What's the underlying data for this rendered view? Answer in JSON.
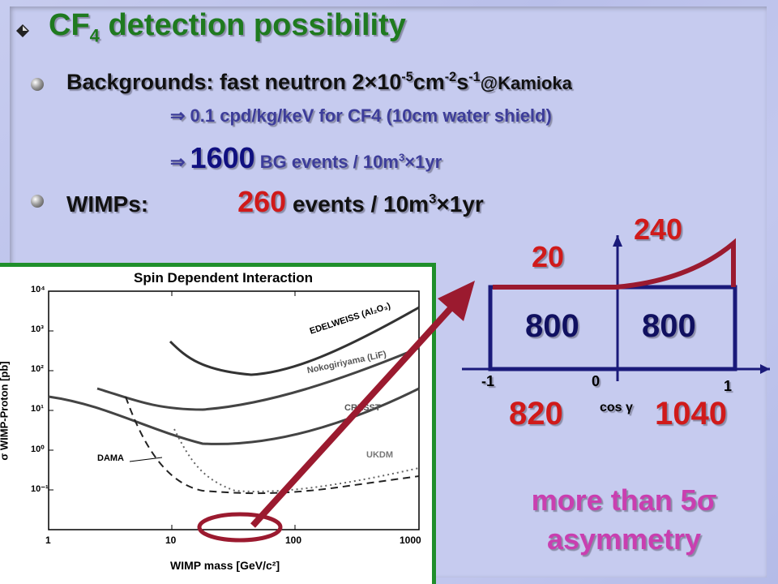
{
  "slide": {
    "title_main": "CF",
    "title_sub": "4",
    "title_rest": " detection possibility",
    "bg_line": {
      "prefix": "Backgrounds: fast neutron 2×10",
      "exp1": "-5",
      "mid1": "cm",
      "exp2": "-2",
      "mid2": "s",
      "exp3": "-1",
      "suffix": "@Kamioka"
    },
    "bg_rate": "⇒  0.1 cpd/kg/keV for CF4 (10cm water shield)",
    "bg_events": {
      "arrow": "⇒ ",
      "number": "1600",
      "text": " BG events / 10m",
      "exp": "3",
      "tail": "×1yr"
    },
    "wimps": {
      "label": "WIMPs:",
      "number": "260",
      "text": " events / 10m",
      "exp": "3",
      "tail": "×1yr"
    },
    "conclusion_line1": "more than 5σ",
    "conclusion_line2": "asymmetry"
  },
  "asym_diagram": {
    "signal_left": "20",
    "signal_right": "240",
    "bg_left": "800",
    "bg_right": "800",
    "tick_minus1": "-1",
    "tick_0": "0",
    "tick_1": "1",
    "axis_label": "cos γ",
    "total_left": "820",
    "total_right": "1040"
  },
  "limit_plot": {
    "title": "Spin Dependent Interaction",
    "xlabel": "WIMP mass [GeV/c²]",
    "ylabel": "σ WIMP-Proton [pb]",
    "x_ticks": [
      "1",
      "10",
      "100",
      "1000"
    ],
    "y_ticks": [
      "10⁴",
      "10³",
      "10²",
      "10¹",
      "10⁰",
      "10⁻¹"
    ],
    "labels": {
      "edelweiss": "EDELWEISS (Al₂O₃)",
      "nokogiri": "Nokogiriyama (LiF)",
      "cresst": "CRESST",
      "dama": "DAMA",
      "ukdm": "UKDM"
    }
  },
  "colors": {
    "title": "#1f7a1f",
    "highlight": "#d01a1a",
    "navy": "#1a1a7a",
    "maroon": "#9b1a2f",
    "pink": "#c93fb0",
    "frame": "#1f8f2b"
  }
}
